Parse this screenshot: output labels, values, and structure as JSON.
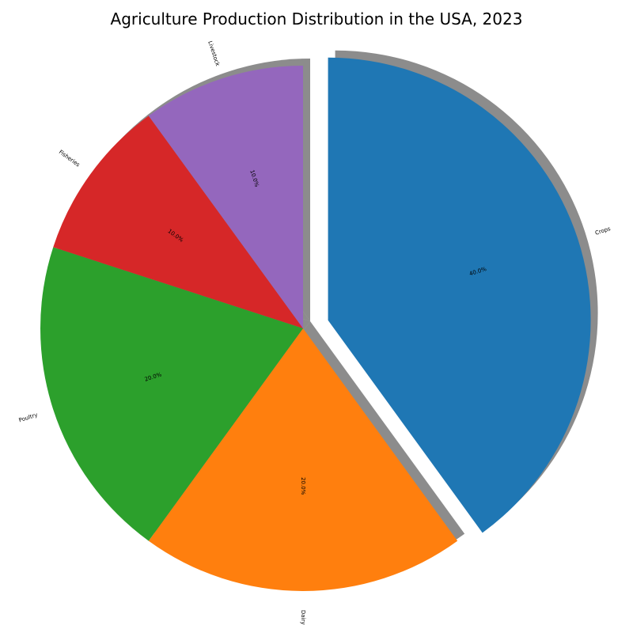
{
  "chart_data": {
    "type": "pie",
    "title": "Agriculture Production Distribution in the USA, 2023",
    "slices": [
      {
        "label": "Crops",
        "value": 40.0,
        "pct_label": "40.0%",
        "color": "#1f77b4",
        "explode": true
      },
      {
        "label": "Dairy",
        "value": 20.0,
        "pct_label": "20.0%",
        "color": "#ff7f0e",
        "explode": false
      },
      {
        "label": "Poultry",
        "value": 20.0,
        "pct_label": "20.0%",
        "color": "#2ca02c",
        "explode": false
      },
      {
        "label": "Fisheries",
        "value": 10.0,
        "pct_label": "10.0%",
        "color": "#d62728",
        "explode": false
      },
      {
        "label": "Livestock",
        "value": 10.0,
        "pct_label": "10.0%",
        "color": "#9467bd",
        "explode": false
      }
    ],
    "start_angle": "90",
    "direction": "clockwise",
    "shadow": true,
    "legend": "none"
  }
}
